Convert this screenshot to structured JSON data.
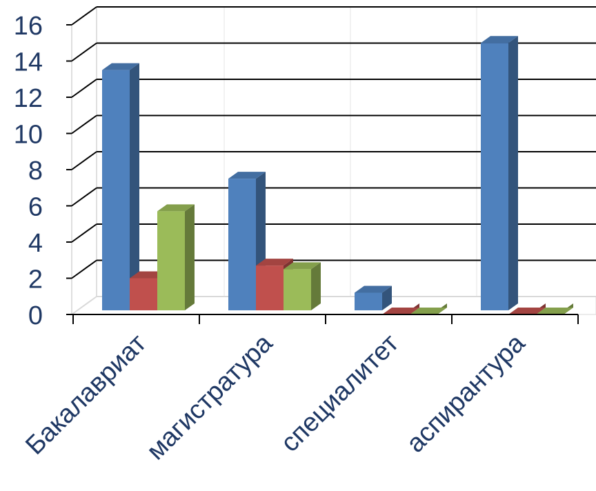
{
  "chart_data": {
    "type": "bar",
    "style": "3d-clustered-column",
    "categories": [
      "Бакалавриат",
      "магистратура",
      "специалитет",
      "аспирантура"
    ],
    "series": [
      {
        "values": [
          13.5,
          7.5,
          1.2,
          15.0
        ],
        "color": "#4f81bd"
      },
      {
        "values": [
          2.0,
          2.7,
          0,
          0
        ],
        "color": "#c0504d"
      },
      {
        "values": [
          5.7,
          2.5,
          0,
          0
        ],
        "color": "#9bbb59"
      }
    ],
    "yticks": [
      "0",
      "2",
      "4",
      "6",
      "8",
      "10",
      "12",
      "14",
      "16"
    ],
    "ylim": [
      0,
      16
    ],
    "grid": true,
    "legend": "none",
    "title": "",
    "xlabel": "",
    "ylabel": ""
  }
}
